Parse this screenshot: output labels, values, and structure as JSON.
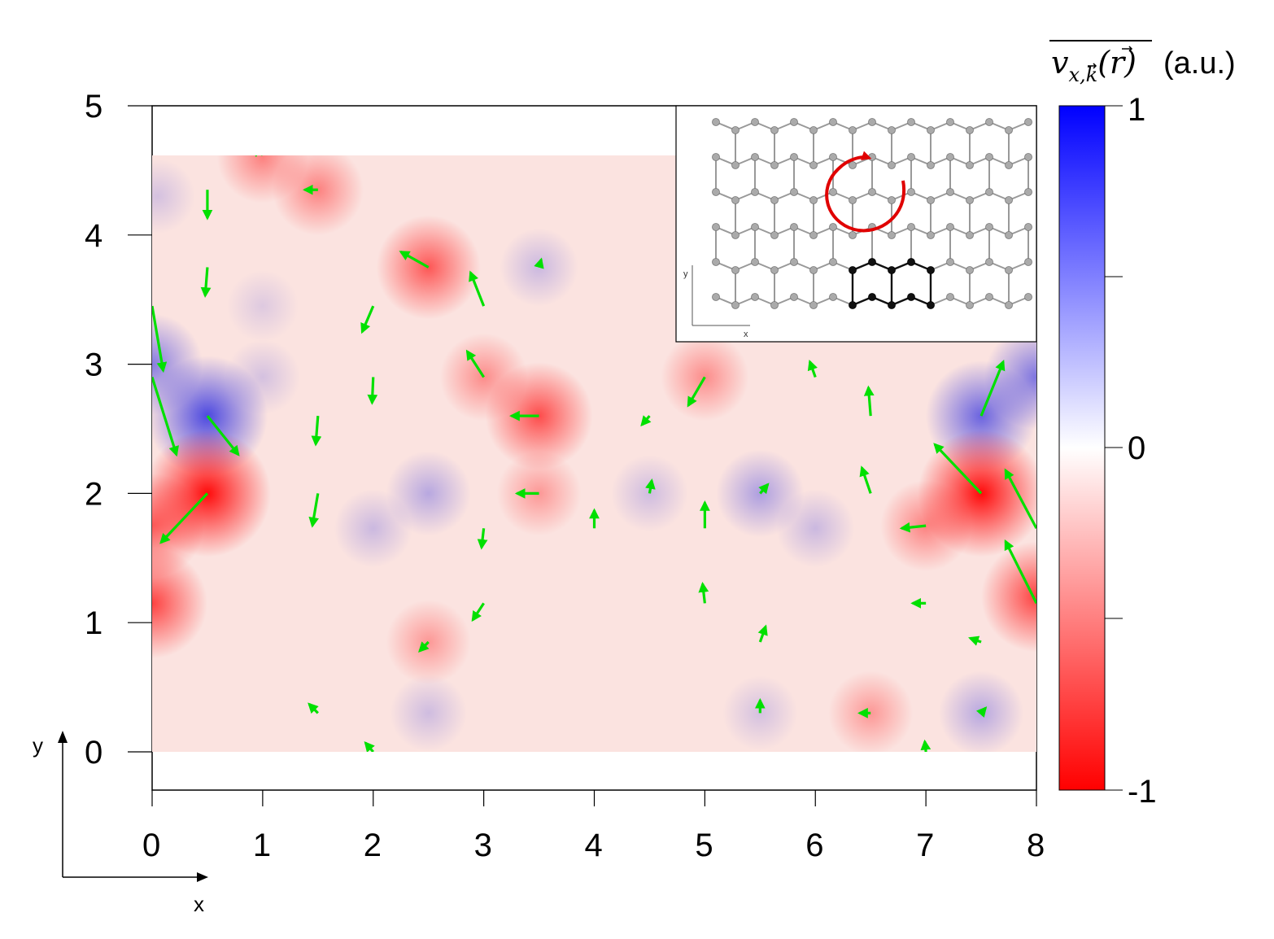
{
  "chart_data": {
    "type": "vector field over heatmap",
    "colorbar": {
      "label": "v_{x,k}(r) (a.u.)",
      "label_main": "v",
      "label_sub": "x,k",
      "label_arg": "(r)",
      "label_unit": "(a.u.)",
      "ticks": [
        "1",
        "0",
        "-1"
      ],
      "range": [
        -1,
        1
      ],
      "colors": {
        "max": "#0000ff",
        "mid": "#ffffff",
        "min": "#ff0000"
      }
    },
    "x_ticks": [
      "0",
      "1",
      "2",
      "3",
      "4",
      "5",
      "6",
      "7",
      "8"
    ],
    "y_ticks": [
      "0",
      "1",
      "2",
      "3",
      "4",
      "5"
    ],
    "xlim": [
      0,
      8
    ],
    "ylim": [
      -0.3,
      5
    ],
    "field_y_range": [
      0,
      4.62
    ],
    "axis_arrows": {
      "x": "x",
      "y": "y"
    },
    "inset": {
      "x_label": "x",
      "y_label": "y",
      "description_arrow_color": "#e00000"
    },
    "arrow_color": "#00e000",
    "hotspots": [
      {
        "x": 0.5,
        "y": 2.6,
        "v": 0.85
      },
      {
        "x": 0.0,
        "y": 3.0,
        "v": 0.55
      },
      {
        "x": 0.05,
        "y": 4.3,
        "v": 0.15
      },
      {
        "x": 7.5,
        "y": 2.6,
        "v": 0.7
      },
      {
        "x": 8.0,
        "y": 2.9,
        "v": 0.6
      },
      {
        "x": 2.5,
        "y": 2.0,
        "v": 0.3
      },
      {
        "x": 5.5,
        "y": 2.0,
        "v": 0.35
      },
      {
        "x": 4.5,
        "y": 2.0,
        "v": 0.18
      },
      {
        "x": 2.0,
        "y": 1.73,
        "v": 0.2
      },
      {
        "x": 6.0,
        "y": 1.73,
        "v": 0.2
      },
      {
        "x": 3.5,
        "y": 3.75,
        "v": 0.2
      },
      {
        "x": 7.5,
        "y": 0.3,
        "v": 0.3
      },
      {
        "x": 2.5,
        "y": 0.3,
        "v": 0.18
      },
      {
        "x": 5.5,
        "y": 0.3,
        "v": 0.15
      },
      {
        "x": 1.0,
        "y": 2.9,
        "v": 0.15
      },
      {
        "x": 1.0,
        "y": 3.45,
        "v": 0.1
      },
      {
        "x": 0.5,
        "y": 2.0,
        "v": -0.95
      },
      {
        "x": 0.0,
        "y": 1.15,
        "v": -0.7
      },
      {
        "x": 0.0,
        "y": 1.75,
        "v": -0.6
      },
      {
        "x": 7.5,
        "y": 2.0,
        "v": -0.95
      },
      {
        "x": 8.0,
        "y": 1.2,
        "v": -0.7
      },
      {
        "x": 3.5,
        "y": 2.6,
        "v": -0.65
      },
      {
        "x": 2.5,
        "y": 3.75,
        "v": -0.6
      },
      {
        "x": 1.5,
        "y": 4.35,
        "v": -0.4
      },
      {
        "x": 1.0,
        "y": 4.6,
        "v": -0.4
      },
      {
        "x": 3.0,
        "y": 2.9,
        "v": -0.35
      },
      {
        "x": 3.5,
        "y": 2.0,
        "v": -0.3
      },
      {
        "x": 5.0,
        "y": 2.9,
        "v": -0.35
      },
      {
        "x": 7.0,
        "y": 1.75,
        "v": -0.4
      },
      {
        "x": 2.5,
        "y": 0.85,
        "v": -0.3
      },
      {
        "x": 6.5,
        "y": 0.3,
        "v": -0.3
      }
    ],
    "vectors": [
      {
        "x": 0.0,
        "y": 3.45,
        "dx": 0.1,
        "dy": -0.5
      },
      {
        "x": 0.0,
        "y": 2.9,
        "dx": 0.22,
        "dy": -0.6
      },
      {
        "x": 0.5,
        "y": 2.6,
        "dx": 0.28,
        "dy": -0.3
      },
      {
        "x": 0.5,
        "y": 2.0,
        "dx": -0.42,
        "dy": -0.38
      },
      {
        "x": 0.5,
        "y": 4.35,
        "dx": 0.0,
        "dy": -0.22
      },
      {
        "x": 0.5,
        "y": 3.75,
        "dx": -0.02,
        "dy": -0.22
      },
      {
        "x": 1.0,
        "y": 4.62,
        "dx": -0.1,
        "dy": 0.05
      },
      {
        "x": 1.5,
        "y": 4.35,
        "dx": -0.12,
        "dy": 0.0
      },
      {
        "x": 1.5,
        "y": 2.6,
        "dx": -0.02,
        "dy": -0.22
      },
      {
        "x": 1.5,
        "y": 2.0,
        "dx": -0.05,
        "dy": -0.25
      },
      {
        "x": 2.0,
        "y": 3.45,
        "dx": -0.1,
        "dy": -0.2
      },
      {
        "x": 2.0,
        "y": 2.9,
        "dx": -0.01,
        "dy": -0.2
      },
      {
        "x": 2.5,
        "y": 3.75,
        "dx": -0.25,
        "dy": 0.12
      },
      {
        "x": 3.0,
        "y": 3.45,
        "dx": -0.12,
        "dy": 0.26
      },
      {
        "x": 3.0,
        "y": 2.9,
        "dx": -0.15,
        "dy": 0.2
      },
      {
        "x": 3.5,
        "y": 2.6,
        "dx": -0.25,
        "dy": 0.0
      },
      {
        "x": 3.5,
        "y": 2.0,
        "dx": -0.2,
        "dy": 0.0
      },
      {
        "x": 3.5,
        "y": 3.75,
        "dx": 0.02,
        "dy": 0.06
      },
      {
        "x": 3.0,
        "y": 1.73,
        "dx": -0.02,
        "dy": -0.15
      },
      {
        "x": 3.0,
        "y": 1.15,
        "dx": -0.1,
        "dy": -0.13
      },
      {
        "x": 2.5,
        "y": 0.85,
        "dx": -0.08,
        "dy": -0.07
      },
      {
        "x": 1.5,
        "y": 0.3,
        "dx": -0.08,
        "dy": 0.07
      },
      {
        "x": 2.0,
        "y": 0.0,
        "dx": -0.07,
        "dy": 0.07
      },
      {
        "x": 4.0,
        "y": 1.73,
        "dx": 0.0,
        "dy": 0.14
      },
      {
        "x": 4.5,
        "y": 2.6,
        "dx": -0.07,
        "dy": -0.07
      },
      {
        "x": 4.5,
        "y": 2.0,
        "dx": 0.02,
        "dy": 0.1
      },
      {
        "x": 5.0,
        "y": 2.9,
        "dx": -0.15,
        "dy": -0.22
      },
      {
        "x": 5.0,
        "y": 1.73,
        "dx": 0.0,
        "dy": 0.2
      },
      {
        "x": 5.0,
        "y": 1.15,
        "dx": -0.02,
        "dy": 0.15
      },
      {
        "x": 5.5,
        "y": 2.0,
        "dx": 0.07,
        "dy": 0.07
      },
      {
        "x": 5.5,
        "y": 0.85,
        "dx": 0.05,
        "dy": 0.12
      },
      {
        "x": 5.5,
        "y": 0.3,
        "dx": 0.0,
        "dy": 0.1
      },
      {
        "x": 6.0,
        "y": 2.9,
        "dx": -0.05,
        "dy": 0.12
      },
      {
        "x": 6.5,
        "y": 2.6,
        "dx": -0.02,
        "dy": 0.22
      },
      {
        "x": 6.5,
        "y": 2.0,
        "dx": -0.08,
        "dy": 0.2
      },
      {
        "x": 7.0,
        "y": 1.75,
        "dx": -0.22,
        "dy": -0.02
      },
      {
        "x": 7.0,
        "y": 1.15,
        "dx": -0.12,
        "dy": 0.0
      },
      {
        "x": 7.5,
        "y": 2.6,
        "dx": 0.2,
        "dy": 0.42
      },
      {
        "x": 7.5,
        "y": 2.0,
        "dx": -0.42,
        "dy": 0.38
      },
      {
        "x": 8.0,
        "y": 1.73,
        "dx": -0.28,
        "dy": 0.45
      },
      {
        "x": 8.0,
        "y": 1.15,
        "dx": -0.28,
        "dy": 0.48
      },
      {
        "x": 7.5,
        "y": 0.85,
        "dx": -0.1,
        "dy": 0.03
      },
      {
        "x": 6.5,
        "y": 0.3,
        "dx": -0.1,
        "dy": 0.0
      },
      {
        "x": 7.0,
        "y": 0.0,
        "dx": -0.01,
        "dy": 0.08
      },
      {
        "x": 7.5,
        "y": 0.3,
        "dx": 0.04,
        "dy": 0.04
      }
    ]
  }
}
